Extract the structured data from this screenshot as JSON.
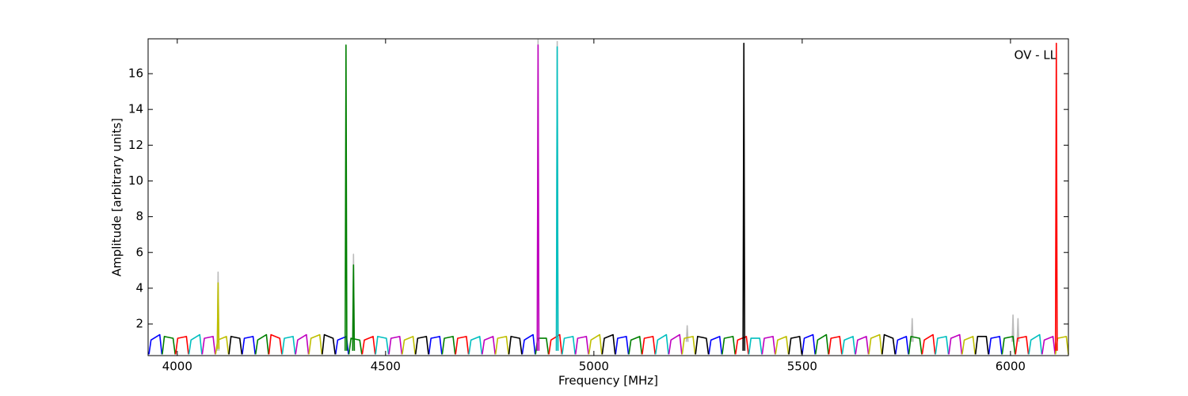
{
  "chart_data": {
    "type": "line",
    "annotation": "OV - LL",
    "xlabel": "Frequency [MHz]",
    "ylabel": "Amplitude [arbitrary units]",
    "xlim": [
      3930,
      6139
    ],
    "ylim": [
      0.23,
      17.95
    ],
    "xticks": [
      4000,
      4500,
      5000,
      5500,
      6000
    ],
    "yticks": [
      2,
      4,
      6,
      8,
      10,
      12,
      14,
      16
    ],
    "series": [
      {
        "color": "#bbbbbb",
        "x": [
          4096,
          4098,
          4100,
          null,
          4421,
          4423,
          4425,
          null,
          4864,
          4866,
          4868,
          null,
          4910,
          4912,
          4914,
          null,
          5222,
          5224,
          5226,
          null,
          5762,
          5764,
          5766,
          null,
          6004,
          6006,
          6008,
          null,
          6016,
          6018,
          6020
        ],
        "values": [
          0.5,
          4.9,
          0.5,
          null,
          0.5,
          5.9,
          0.5,
          null,
          0.5,
          17.9,
          0.5,
          null,
          0.5,
          17.8,
          0.5,
          null,
          1.0,
          1.9,
          1.0,
          null,
          1.0,
          2.3,
          1.0,
          null,
          1.0,
          2.5,
          1.0,
          null,
          1.0,
          2.3,
          1.0
        ]
      },
      {
        "color": "#0000ff",
        "x": [
          3932,
          3937,
          3958,
          3963,
          null,
          4156,
          4161,
          4182,
          4187,
          null,
          4380,
          4385,
          4406,
          4411,
          null,
          4604,
          4609,
          4630,
          4635,
          null,
          4828,
          4833,
          4854,
          4859,
          null,
          5052,
          5057,
          5078,
          5083,
          null,
          5276,
          5281,
          5302,
          5307,
          null,
          5500,
          5505,
          5526,
          5531,
          null,
          5724,
          5729,
          5750,
          5755,
          null,
          5948,
          5953,
          5974,
          5979
        ],
        "values": [
          0.3,
          1.1,
          1.4,
          0.3,
          null,
          0.3,
          1.2,
          1.3,
          0.3,
          null,
          0.3,
          1.1,
          1.3,
          0.3,
          null,
          0.3,
          1.2,
          1.3,
          0.3,
          null,
          0.3,
          1.1,
          1.4,
          0.3,
          null,
          0.3,
          1.2,
          1.3,
          0.3,
          null,
          0.3,
          1.1,
          1.3,
          0.3,
          null,
          0.3,
          1.2,
          1.4,
          0.3,
          null,
          0.3,
          1.1,
          1.3,
          0.3,
          null,
          0.3,
          1.2,
          1.3,
          0.3
        ]
      },
      {
        "color": "#007f00",
        "x": [
          3964,
          3969,
          3990,
          3995,
          null,
          4188,
          4193,
          4214,
          4219,
          null,
          4412,
          4417,
          4438,
          4443,
          null,
          4636,
          4641,
          4662,
          4667,
          null,
          4860,
          4865,
          4886,
          4891,
          null,
          5084,
          5089,
          5110,
          5115,
          null,
          5308,
          5313,
          5334,
          5339,
          null,
          5532,
          5537,
          5558,
          5563,
          null,
          5756,
          5761,
          5782,
          5787,
          null,
          5980,
          5985,
          6006,
          6011
        ],
        "values": [
          0.3,
          1.3,
          1.2,
          0.3,
          null,
          0.3,
          1.1,
          1.4,
          0.3,
          null,
          0.3,
          1.2,
          1.1,
          0.3,
          null,
          0.3,
          1.2,
          1.3,
          0.3,
          null,
          0.3,
          1.2,
          1.2,
          0.3,
          null,
          0.3,
          1.1,
          1.3,
          0.3,
          null,
          0.3,
          1.2,
          1.3,
          0.3,
          null,
          0.3,
          1.1,
          1.4,
          0.3,
          null,
          0.3,
          1.3,
          1.2,
          0.3,
          null,
          0.3,
          1.2,
          1.3,
          0.3
        ]
      },
      {
        "color": "#ff0000",
        "x": [
          3996,
          4001,
          4022,
          4027,
          null,
          4220,
          4225,
          4246,
          4251,
          null,
          4444,
          4449,
          4470,
          4475,
          null,
          4668,
          4673,
          4694,
          4699,
          null,
          4892,
          4897,
          4918,
          4923,
          null,
          5116,
          5121,
          5142,
          5147,
          null,
          5340,
          5345,
          5366,
          5371,
          null,
          5564,
          5569,
          5590,
          5595,
          null,
          5788,
          5793,
          5814,
          5819,
          null,
          6012,
          6017,
          6038,
          6043
        ],
        "values": [
          0.3,
          1.2,
          1.3,
          0.3,
          null,
          0.3,
          1.4,
          1.2,
          0.3,
          null,
          0.3,
          1.1,
          1.3,
          0.3,
          null,
          0.3,
          1.2,
          1.3,
          0.3,
          null,
          0.3,
          1.1,
          1.4,
          0.3,
          null,
          0.3,
          1.2,
          1.3,
          0.3,
          null,
          0.3,
          1.1,
          1.3,
          0.3,
          null,
          0.3,
          1.2,
          1.3,
          0.3,
          null,
          0.3,
          1.1,
          1.4,
          0.3,
          null,
          0.3,
          1.2,
          1.3,
          0.3
        ]
      },
      {
        "color": "#00bfbf",
        "x": [
          4028,
          4033,
          4054,
          4059,
          null,
          4252,
          4257,
          4278,
          4283,
          null,
          4476,
          4481,
          4502,
          4507,
          null,
          4700,
          4705,
          4726,
          4731,
          null,
          4924,
          4929,
          4950,
          4955,
          null,
          5148,
          5153,
          5174,
          5179,
          null,
          5372,
          5377,
          5398,
          5403,
          null,
          5596,
          5601,
          5622,
          5627,
          null,
          5820,
          5825,
          5846,
          5851,
          null,
          6044,
          6049,
          6070,
          6075
        ],
        "values": [
          0.3,
          1.1,
          1.4,
          0.3,
          null,
          0.3,
          1.2,
          1.3,
          0.3,
          null,
          0.3,
          1.3,
          1.2,
          0.3,
          null,
          0.3,
          1.1,
          1.3,
          0.3,
          null,
          0.3,
          1.2,
          1.3,
          0.3,
          null,
          0.3,
          1.1,
          1.4,
          0.3,
          null,
          0.3,
          1.2,
          1.2,
          0.3,
          null,
          0.3,
          1.1,
          1.3,
          0.3,
          null,
          0.3,
          1.2,
          1.3,
          0.3,
          null,
          0.3,
          1.1,
          1.4,
          0.3
        ]
      },
      {
        "color": "#bf00bf",
        "x": [
          4060,
          4065,
          4086,
          4091,
          null,
          4284,
          4289,
          4310,
          4315,
          null,
          4508,
          4513,
          4534,
          4539,
          null,
          4732,
          4737,
          4758,
          4763,
          null,
          4956,
          4961,
          4982,
          4987,
          null,
          5180,
          5185,
          5206,
          5211,
          null,
          5404,
          5409,
          5430,
          5435,
          null,
          5628,
          5633,
          5654,
          5659,
          null,
          5852,
          5857,
          5878,
          5883,
          null,
          6076,
          6081,
          6102,
          6107
        ],
        "values": [
          0.3,
          1.2,
          1.3,
          0.3,
          null,
          0.3,
          1.1,
          1.4,
          0.3,
          null,
          0.3,
          1.2,
          1.3,
          0.3,
          null,
          0.3,
          1.1,
          1.3,
          0.3,
          null,
          0.3,
          1.2,
          1.3,
          0.3,
          null,
          0.3,
          1.1,
          1.4,
          0.3,
          null,
          0.3,
          1.2,
          1.3,
          0.3,
          null,
          0.3,
          1.1,
          1.3,
          0.3,
          null,
          0.3,
          1.2,
          1.4,
          0.3,
          null,
          0.3,
          1.1,
          1.3,
          0.3
        ]
      },
      {
        "color": "#bfbf00",
        "x": [
          4092,
          4097,
          4118,
          4123,
          null,
          4316,
          4321,
          4342,
          4347,
          null,
          4540,
          4545,
          4566,
          4571,
          null,
          4764,
          4769,
          4790,
          4795,
          null,
          4988,
          4993,
          5014,
          5019,
          null,
          5212,
          5217,
          5238,
          5243,
          null,
          5436,
          5441,
          5462,
          5467,
          null,
          5660,
          5665,
          5686,
          5691,
          null,
          5884,
          5889,
          5910,
          5915,
          null,
          6108,
          6113,
          6134,
          6139
        ],
        "values": [
          0.3,
          1.1,
          1.3,
          0.3,
          null,
          0.3,
          1.2,
          1.4,
          0.3,
          null,
          0.3,
          1.1,
          1.3,
          0.3,
          null,
          0.3,
          1.2,
          1.3,
          0.3,
          null,
          0.3,
          1.1,
          1.4,
          0.3,
          null,
          0.3,
          1.2,
          1.3,
          0.3,
          null,
          0.3,
          1.1,
          1.3,
          0.3,
          null,
          0.3,
          1.2,
          1.4,
          0.3,
          null,
          0.3,
          1.1,
          1.3,
          0.3,
          null,
          0.3,
          1.2,
          1.3,
          0.3
        ]
      },
      {
        "color": "#000000",
        "x": [
          4124,
          4129,
          4150,
          4155,
          null,
          4348,
          4353,
          4374,
          4379,
          null,
          4572,
          4577,
          4598,
          4603,
          null,
          4796,
          4801,
          4822,
          4827,
          null,
          5020,
          5025,
          5046,
          5051,
          null,
          5244,
          5249,
          5270,
          5275,
          null,
          5468,
          5473,
          5494,
          5499,
          null,
          5692,
          5697,
          5718,
          5723,
          null,
          5916,
          5921,
          5942,
          5947
        ],
        "values": [
          0.3,
          1.3,
          1.2,
          0.3,
          null,
          0.3,
          1.4,
          1.2,
          0.3,
          null,
          0.3,
          1.2,
          1.3,
          0.3,
          null,
          0.3,
          1.3,
          1.2,
          0.3,
          null,
          0.3,
          1.2,
          1.4,
          0.3,
          null,
          0.3,
          1.3,
          1.2,
          0.3,
          null,
          0.3,
          1.2,
          1.3,
          0.3,
          null,
          0.3,
          1.4,
          1.2,
          0.3,
          null,
          0.3,
          1.3,
          1.3,
          0.3
        ]
      },
      {
        "color": "#bfbf00",
        "x": [
          4096,
          4098,
          4100
        ],
        "values": [
          0.6,
          4.3,
          0.6
        ]
      },
      {
        "color": "#007f00",
        "x": [
          4403,
          4405,
          4407,
          null,
          4421,
          4423,
          4425
        ],
        "values": [
          0.5,
          17.6,
          0.5,
          null,
          0.5,
          5.3,
          0.5
        ]
      },
      {
        "color": "#bf00bf",
        "x": [
          4864,
          4866,
          4868
        ],
        "values": [
          0.5,
          17.6,
          0.5
        ]
      },
      {
        "color": "#00bfbf",
        "x": [
          4910,
          4912,
          4914
        ],
        "values": [
          0.5,
          17.5,
          0.5
        ]
      },
      {
        "color": "#000000",
        "x": [
          5358,
          5360,
          5362
        ],
        "values": [
          0.5,
          17.7,
          0.5
        ]
      },
      {
        "color": "#ff0000",
        "x": [
          6108,
          6110,
          6112
        ],
        "values": [
          0.5,
          17.7,
          0.5
        ]
      }
    ]
  }
}
